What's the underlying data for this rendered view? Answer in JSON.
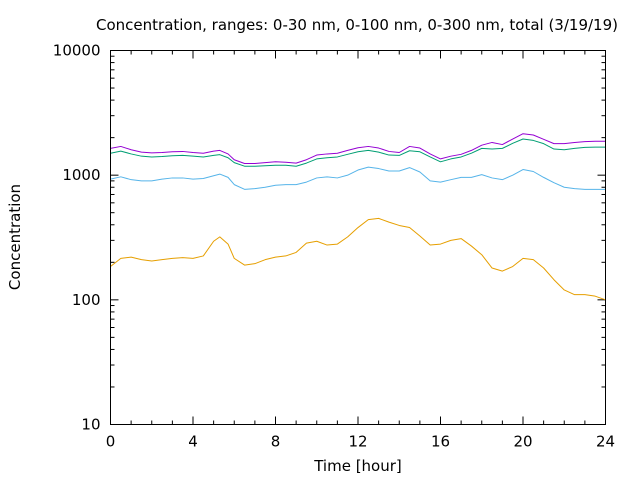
{
  "chart_data": {
    "type": "line",
    "title": "Concentration, ranges: 0-30 nm, 0-100 nm, 0-300 nm, total (3/19/19)",
    "xlabel": "Time [hour]",
    "ylabel": "Concentration",
    "xlim": [
      0,
      24
    ],
    "ylim": [
      10,
      10000
    ],
    "y_scale": "log",
    "grid": false,
    "x_ticks": [
      0,
      4,
      8,
      12,
      16,
      20,
      24
    ],
    "x_tick_labels": [
      "0",
      "4",
      "8",
      "12",
      "16",
      "20",
      "24"
    ],
    "y_ticks": [
      10,
      100,
      1000,
      10000
    ],
    "y_tick_labels": [
      "10",
      "100",
      "1000",
      "10000"
    ],
    "x": [
      0,
      0.5,
      1,
      1.5,
      2,
      2.5,
      3,
      3.5,
      4,
      4.5,
      5,
      5.3,
      5.7,
      6,
      6.5,
      7,
      7.5,
      8,
      8.5,
      9,
      9.5,
      10,
      10.5,
      11,
      11.5,
      12,
      12.5,
      13,
      13.5,
      14,
      14.5,
      15,
      15.5,
      16,
      16.5,
      17,
      17.5,
      18,
      18.5,
      19,
      19.5,
      20,
      20.5,
      21,
      21.5,
      22,
      22.5,
      23,
      23.5,
      24
    ],
    "series": [
      {
        "color": "#e69f00",
        "values": [
          185,
          215,
          220,
          210,
          205,
          210,
          215,
          218,
          215,
          225,
          295,
          320,
          280,
          215,
          190,
          195,
          210,
          220,
          225,
          240,
          285,
          295,
          275,
          280,
          320,
          380,
          440,
          450,
          420,
          395,
          380,
          325,
          275,
          280,
          300,
          310,
          270,
          230,
          180,
          170,
          185,
          215,
          210,
          180,
          145,
          120,
          110,
          110,
          107,
          100
        ]
      },
      {
        "color": "#56b4e9",
        "values": [
          930,
          970,
          920,
          900,
          900,
          930,
          950,
          950,
          930,
          940,
          990,
          1020,
          960,
          840,
          770,
          780,
          800,
          830,
          840,
          840,
          880,
          950,
          970,
          950,
          1000,
          1100,
          1160,
          1130,
          1080,
          1080,
          1150,
          1060,
          900,
          880,
          920,
          960,
          960,
          1010,
          950,
          920,
          1000,
          1110,
          1070,
          960,
          870,
          800,
          780,
          770,
          770,
          770
        ]
      },
      {
        "color": "#009e73",
        "values": [
          1500,
          1560,
          1480,
          1420,
          1400,
          1410,
          1430,
          1440,
          1420,
          1400,
          1440,
          1460,
          1380,
          1260,
          1180,
          1180,
          1190,
          1200,
          1200,
          1180,
          1250,
          1350,
          1380,
          1400,
          1470,
          1540,
          1580,
          1530,
          1450,
          1440,
          1570,
          1540,
          1400,
          1280,
          1350,
          1400,
          1500,
          1640,
          1620,
          1640,
          1800,
          1950,
          1900,
          1790,
          1620,
          1600,
          1640,
          1670,
          1680,
          1680
        ]
      },
      {
        "color": "#9400d3",
        "values": [
          1640,
          1700,
          1600,
          1530,
          1510,
          1520,
          1540,
          1550,
          1520,
          1500,
          1560,
          1580,
          1480,
          1330,
          1240,
          1240,
          1260,
          1280,
          1270,
          1250,
          1330,
          1450,
          1480,
          1500,
          1580,
          1660,
          1700,
          1650,
          1550,
          1520,
          1700,
          1650,
          1480,
          1350,
          1420,
          1470,
          1580,
          1740,
          1830,
          1760,
          1950,
          2150,
          2100,
          1940,
          1790,
          1790,
          1830,
          1860,
          1870,
          1870
        ]
      }
    ]
  }
}
